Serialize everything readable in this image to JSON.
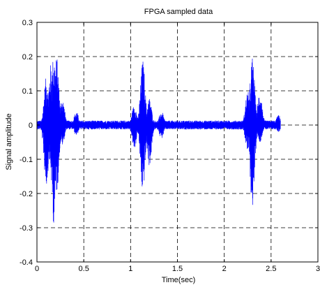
{
  "chart_data": {
    "type": "line",
    "title": "FPGA sampled data",
    "xlabel": "Time(sec)",
    "ylabel": "Signal amplitude",
    "xlim": [
      0,
      3
    ],
    "ylim": [
      -0.4,
      0.3
    ],
    "grid": true,
    "x_ticks": [
      0,
      0.5,
      1,
      1.5,
      2,
      2.5,
      3
    ],
    "x_tick_labels": [
      "0",
      "0.5",
      "1",
      "1.5",
      "2",
      "2.5",
      "3"
    ],
    "y_ticks": [
      -0.4,
      -0.3,
      -0.2,
      -0.1,
      0,
      0.1,
      0.2,
      0.3
    ],
    "y_tick_labels": [
      "-0.4",
      "-0.3",
      "-0.2",
      "-0.1",
      "0",
      "0.1",
      "0.2",
      "0.3"
    ],
    "color": "#0000ff",
    "series": [
      {
        "x_start": 0,
        "x_end": 2.6,
        "bursts": [
          {
            "t": 0.1,
            "max": 0.14,
            "min": -0.18
          },
          {
            "t": 0.15,
            "max": 0.18,
            "min": -0.14
          },
          {
            "t": 0.18,
            "max": 0.21,
            "min": -0.29
          },
          {
            "t": 0.21,
            "max": 0.2,
            "min": -0.2
          },
          {
            "t": 0.27,
            "max": 0.08,
            "min": -0.06
          },
          {
            "t": 0.42,
            "max": 0.04,
            "min": -0.03
          },
          {
            "t": 1.04,
            "max": 0.06,
            "min": -0.07
          },
          {
            "t": 1.13,
            "max": 0.19,
            "min": -0.2
          },
          {
            "t": 1.2,
            "max": 0.08,
            "min": -0.12
          },
          {
            "t": 1.33,
            "max": 0.04,
            "min": -0.04
          },
          {
            "t": 2.25,
            "max": 0.1,
            "min": -0.08
          },
          {
            "t": 2.3,
            "max": 0.2,
            "min": -0.24
          },
          {
            "t": 2.38,
            "max": 0.1,
            "min": -0.05
          },
          {
            "t": 2.58,
            "max": 0.03,
            "min": -0.02
          }
        ]
      }
    ]
  }
}
